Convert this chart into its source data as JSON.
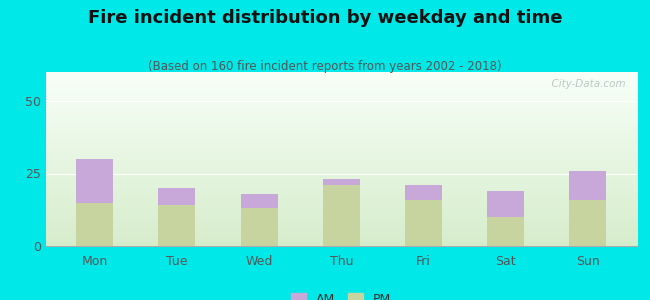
{
  "title": "Fire incident distribution by weekday and time",
  "subtitle": "(Based on 160 fire incident reports from years 2002 - 2018)",
  "categories": [
    "Mon",
    "Tue",
    "Wed",
    "Thu",
    "Fri",
    "Sat",
    "Sun"
  ],
  "pm_values": [
    15,
    14,
    13,
    21,
    16,
    10,
    16
  ],
  "am_values": [
    15,
    6,
    5,
    2,
    5,
    9,
    10
  ],
  "am_color": "#c8a8d8",
  "pm_color": "#c8d4a0",
  "background_outer": "#00e8e8",
  "ylim": [
    0,
    60
  ],
  "yticks": [
    0,
    25,
    50
  ],
  "title_fontsize": 13,
  "subtitle_fontsize": 8.5,
  "tick_fontsize": 9,
  "watermark": "  City-Data.com"
}
